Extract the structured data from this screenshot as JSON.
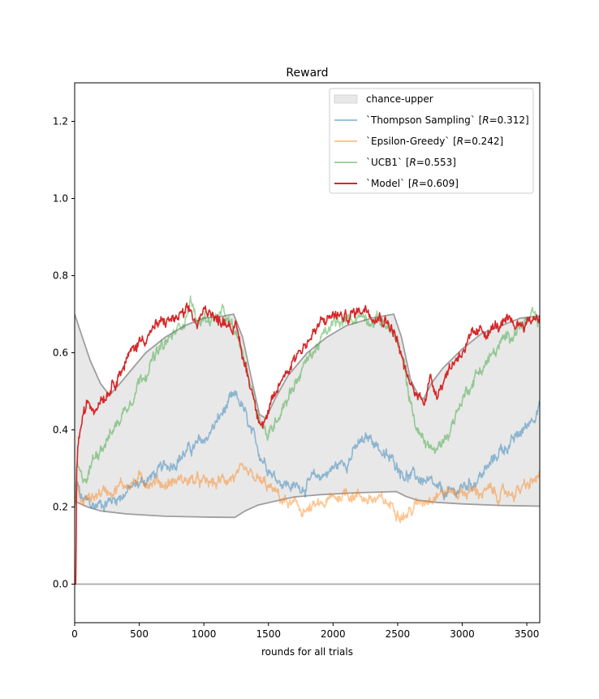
{
  "chart_data": {
    "type": "line",
    "title": "Reward",
    "xlabel": "rounds for all trials",
    "ylabel": "",
    "xlim": [
      0,
      3600
    ],
    "ylim": [
      -0.1,
      1.3
    ],
    "xticks": [
      0,
      500,
      1000,
      1500,
      2000,
      2500,
      3000,
      3500
    ],
    "yticks": [
      0.0,
      0.2,
      0.4,
      0.6,
      0.8,
      1.0,
      1.2
    ],
    "xtick_labels": [
      "0",
      "500",
      "1000",
      "1500",
      "2000",
      "2500",
      "3000",
      "3500"
    ],
    "ytick_labels": [
      "0.0",
      "0.2",
      "0.4",
      "0.6",
      "0.8",
      "1.0",
      "1.2"
    ],
    "grid": false,
    "legend_position": "upper right",
    "band": {
      "name": "chance-upper",
      "color": "#e8e8e8",
      "upper": [
        [
          0,
          0.7
        ],
        [
          60,
          0.64
        ],
        [
          120,
          0.58
        ],
        [
          200,
          0.52
        ],
        [
          270,
          0.49
        ],
        [
          350,
          0.52
        ],
        [
          450,
          0.56
        ],
        [
          550,
          0.6
        ],
        [
          700,
          0.64
        ],
        [
          850,
          0.67
        ],
        [
          1000,
          0.69
        ],
        [
          1150,
          0.695
        ],
        [
          1230,
          0.7
        ],
        [
          1300,
          0.64
        ],
        [
          1370,
          0.53
        ],
        [
          1430,
          0.44
        ],
        [
          1480,
          0.43
        ],
        [
          1550,
          0.48
        ],
        [
          1650,
          0.54
        ],
        [
          1800,
          0.6
        ],
        [
          1950,
          0.64
        ],
        [
          2100,
          0.67
        ],
        [
          2300,
          0.69
        ],
        [
          2470,
          0.7
        ],
        [
          2530,
          0.64
        ],
        [
          2600,
          0.53
        ],
        [
          2660,
          0.49
        ],
        [
          2700,
          0.48
        ],
        [
          2760,
          0.52
        ],
        [
          2850,
          0.56
        ],
        [
          3000,
          0.61
        ],
        [
          3150,
          0.65
        ],
        [
          3300,
          0.67
        ],
        [
          3450,
          0.69
        ],
        [
          3600,
          0.695
        ]
      ],
      "lower": [
        [
          0,
          0.215
        ],
        [
          100,
          0.2
        ],
        [
          200,
          0.19
        ],
        [
          400,
          0.182
        ],
        [
          700,
          0.176
        ],
        [
          1000,
          0.174
        ],
        [
          1240,
          0.173
        ],
        [
          1320,
          0.19
        ],
        [
          1420,
          0.205
        ],
        [
          1550,
          0.215
        ],
        [
          1700,
          0.226
        ],
        [
          1900,
          0.232
        ],
        [
          2200,
          0.237
        ],
        [
          2490,
          0.24
        ],
        [
          2560,
          0.228
        ],
        [
          2650,
          0.218
        ],
        [
          2800,
          0.212
        ],
        [
          3000,
          0.208
        ],
        [
          3300,
          0.204
        ],
        [
          3600,
          0.202
        ]
      ]
    },
    "baseline": 0.0,
    "series": [
      {
        "name": "`Thompson Sampling` [R=0.312]",
        "label_parts": [
          "`Thompson Sampling` [",
          "R",
          "=0.312]"
        ],
        "color": "#1f77b4",
        "opacity": 0.45,
        "points": [
          [
            0,
            0.2
          ],
          [
            20,
            0.26
          ],
          [
            50,
            0.22
          ],
          [
            100,
            0.21
          ],
          [
            150,
            0.2
          ],
          [
            200,
            0.21
          ],
          [
            300,
            0.22
          ],
          [
            400,
            0.24
          ],
          [
            500,
            0.26
          ],
          [
            600,
            0.28
          ],
          [
            700,
            0.3
          ],
          [
            800,
            0.33
          ],
          [
            900,
            0.35
          ],
          [
            1000,
            0.37
          ],
          [
            1100,
            0.42
          ],
          [
            1200,
            0.47
          ],
          [
            1250,
            0.48
          ],
          [
            1300,
            0.46
          ],
          [
            1350,
            0.4
          ],
          [
            1400,
            0.36
          ],
          [
            1450,
            0.33
          ],
          [
            1500,
            0.31
          ],
          [
            1550,
            0.28
          ],
          [
            1600,
            0.27
          ],
          [
            1700,
            0.25
          ],
          [
            1800,
            0.26
          ],
          [
            1900,
            0.28
          ],
          [
            2000,
            0.3
          ],
          [
            2100,
            0.32
          ],
          [
            2200,
            0.36
          ],
          [
            2300,
            0.38
          ],
          [
            2350,
            0.36
          ],
          [
            2400,
            0.33
          ],
          [
            2500,
            0.31
          ],
          [
            2550,
            0.29
          ],
          [
            2600,
            0.28
          ],
          [
            2700,
            0.27
          ],
          [
            2800,
            0.24
          ],
          [
            2900,
            0.23
          ],
          [
            3000,
            0.25
          ],
          [
            3100,
            0.27
          ],
          [
            3200,
            0.3
          ],
          [
            3300,
            0.35
          ],
          [
            3400,
            0.37
          ],
          [
            3500,
            0.41
          ],
          [
            3550,
            0.44
          ],
          [
            3600,
            0.47
          ]
        ]
      },
      {
        "name": "`Epsilon-Greedy` [R=0.242]",
        "label_parts": [
          "`Epsilon-Greedy` [",
          "R",
          "=0.242]"
        ],
        "color": "#ff7f0e",
        "opacity": 0.45,
        "points": [
          [
            0,
            0.2
          ],
          [
            20,
            0.25
          ],
          [
            50,
            0.21
          ],
          [
            100,
            0.22
          ],
          [
            200,
            0.24
          ],
          [
            300,
            0.25
          ],
          [
            400,
            0.26
          ],
          [
            500,
            0.27
          ],
          [
            600,
            0.27
          ],
          [
            700,
            0.26
          ],
          [
            800,
            0.27
          ],
          [
            900,
            0.27
          ],
          [
            1000,
            0.26
          ],
          [
            1100,
            0.26
          ],
          [
            1200,
            0.28
          ],
          [
            1300,
            0.28
          ],
          [
            1400,
            0.27
          ],
          [
            1500,
            0.25
          ],
          [
            1600,
            0.22
          ],
          [
            1700,
            0.2
          ],
          [
            1800,
            0.19
          ],
          [
            1900,
            0.2
          ],
          [
            2000,
            0.22
          ],
          [
            2100,
            0.24
          ],
          [
            2200,
            0.23
          ],
          [
            2300,
            0.22
          ],
          [
            2400,
            0.21
          ],
          [
            2500,
            0.2
          ],
          [
            2550,
            0.18
          ],
          [
            2600,
            0.19
          ],
          [
            2700,
            0.22
          ],
          [
            2800,
            0.24
          ],
          [
            2900,
            0.24
          ],
          [
            3000,
            0.24
          ],
          [
            3100,
            0.24
          ],
          [
            3200,
            0.24
          ],
          [
            3300,
            0.23
          ],
          [
            3400,
            0.24
          ],
          [
            3500,
            0.25
          ],
          [
            3600,
            0.28
          ]
        ]
      },
      {
        "name": "`UCB1` [R=0.553]",
        "label_parts": [
          "`UCB1` [",
          "R",
          "=0.553]"
        ],
        "color": "#2ca02c",
        "opacity": 0.45,
        "points": [
          [
            0,
            0.22
          ],
          [
            20,
            0.3
          ],
          [
            50,
            0.27
          ],
          [
            100,
            0.28
          ],
          [
            150,
            0.33
          ],
          [
            200,
            0.36
          ],
          [
            250,
            0.38
          ],
          [
            300,
            0.4
          ],
          [
            400,
            0.46
          ],
          [
            500,
            0.53
          ],
          [
            600,
            0.58
          ],
          [
            700,
            0.62
          ],
          [
            800,
            0.66
          ],
          [
            850,
            0.69
          ],
          [
            900,
            0.74
          ],
          [
            950,
            0.67
          ],
          [
            1000,
            0.69
          ],
          [
            1100,
            0.69
          ],
          [
            1150,
            0.7
          ],
          [
            1200,
            0.67
          ],
          [
            1250,
            0.64
          ],
          [
            1300,
            0.6
          ],
          [
            1350,
            0.54
          ],
          [
            1400,
            0.47
          ],
          [
            1450,
            0.42
          ],
          [
            1500,
            0.38
          ],
          [
            1550,
            0.42
          ],
          [
            1600,
            0.46
          ],
          [
            1700,
            0.52
          ],
          [
            1800,
            0.58
          ],
          [
            1900,
            0.63
          ],
          [
            2000,
            0.67
          ],
          [
            2100,
            0.68
          ],
          [
            2200,
            0.7
          ],
          [
            2300,
            0.69
          ],
          [
            2400,
            0.68
          ],
          [
            2450,
            0.66
          ],
          [
            2500,
            0.62
          ],
          [
            2550,
            0.56
          ],
          [
            2600,
            0.47
          ],
          [
            2650,
            0.4
          ],
          [
            2700,
            0.37
          ],
          [
            2750,
            0.36
          ],
          [
            2800,
            0.34
          ],
          [
            2850,
            0.37
          ],
          [
            2900,
            0.4
          ],
          [
            3000,
            0.48
          ],
          [
            3100,
            0.54
          ],
          [
            3200,
            0.58
          ],
          [
            3300,
            0.62
          ],
          [
            3400,
            0.66
          ],
          [
            3500,
            0.68
          ],
          [
            3550,
            0.69
          ],
          [
            3600,
            0.67
          ]
        ]
      },
      {
        "name": "`Model` [R=0.609]",
        "label_parts": [
          "`Model` [",
          "R",
          "=0.609]"
        ],
        "color": "#d62728",
        "opacity": 1.0,
        "points": [
          [
            0,
            0.0
          ],
          [
            10,
            0.0
          ],
          [
            15,
            0.3
          ],
          [
            25,
            0.36
          ],
          [
            40,
            0.39
          ],
          [
            60,
            0.43
          ],
          [
            80,
            0.44
          ],
          [
            100,
            0.47
          ],
          [
            150,
            0.46
          ],
          [
            200,
            0.49
          ],
          [
            250,
            0.5
          ],
          [
            300,
            0.53
          ],
          [
            400,
            0.58
          ],
          [
            500,
            0.63
          ],
          [
            600,
            0.66
          ],
          [
            700,
            0.68
          ],
          [
            800,
            0.69
          ],
          [
            900,
            0.7
          ],
          [
            950,
            0.67
          ],
          [
            1000,
            0.7
          ],
          [
            1050,
            0.72
          ],
          [
            1100,
            0.68
          ],
          [
            1150,
            0.69
          ],
          [
            1200,
            0.68
          ],
          [
            1250,
            0.66
          ],
          [
            1300,
            0.59
          ],
          [
            1350,
            0.53
          ],
          [
            1400,
            0.47
          ],
          [
            1450,
            0.42
          ],
          [
            1500,
            0.44
          ],
          [
            1550,
            0.48
          ],
          [
            1600,
            0.53
          ],
          [
            1700,
            0.59
          ],
          [
            1800,
            0.63
          ],
          [
            1900,
            0.67
          ],
          [
            2000,
            0.7
          ],
          [
            2100,
            0.69
          ],
          [
            2200,
            0.71
          ],
          [
            2250,
            0.72
          ],
          [
            2300,
            0.71
          ],
          [
            2400,
            0.69
          ],
          [
            2450,
            0.67
          ],
          [
            2500,
            0.63
          ],
          [
            2550,
            0.56
          ],
          [
            2600,
            0.51
          ],
          [
            2650,
            0.49
          ],
          [
            2700,
            0.48
          ],
          [
            2750,
            0.53
          ],
          [
            2800,
            0.5
          ],
          [
            2850,
            0.53
          ],
          [
            2900,
            0.56
          ],
          [
            3000,
            0.61
          ],
          [
            3100,
            0.64
          ],
          [
            3200,
            0.66
          ],
          [
            3300,
            0.67
          ],
          [
            3400,
            0.67
          ],
          [
            3500,
            0.68
          ],
          [
            3550,
            0.69
          ],
          [
            3600,
            0.7
          ]
        ]
      }
    ]
  }
}
